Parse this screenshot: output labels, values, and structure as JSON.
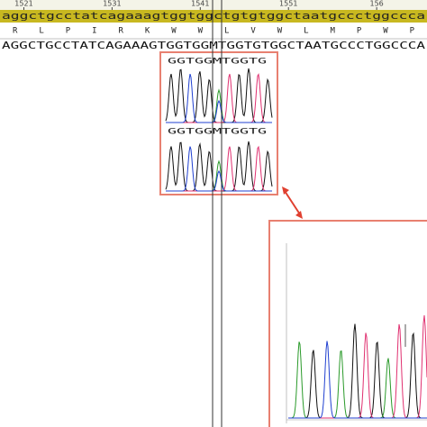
{
  "ruler": {
    "ticks": [
      "1521",
      "1531",
      "1541",
      "1551",
      "156"
    ]
  },
  "sequence": {
    "reference": "aggctgcctatcagaaagtggtggctgtgtggctaatgccctggccca",
    "translation": [
      "R",
      "L",
      "P",
      "I",
      "R",
      "K",
      "W",
      "W",
      "L",
      "V",
      "W",
      "L",
      "M",
      "P",
      "W",
      "P"
    ],
    "sample": "AGGCTGCCTATCAGAAAGTGGTGGMTGGTGTGGCTAATGCCCTGGCCCA"
  },
  "inset": {
    "top_label": "GGTGGMTGGTG",
    "bottom_label": "GGTGGMTGGTG"
  }
}
